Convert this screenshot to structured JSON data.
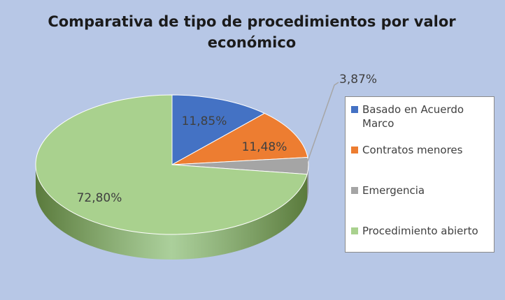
{
  "chart_data": {
    "type": "pie",
    "title": "Comparativa de tipo de procedimientos por valor económico",
    "title_lines": [
      "Comparativa de tipo de procedimientos por valor",
      "económico"
    ],
    "legend_position": "right",
    "slices": [
      {
        "name": "Basado en Acuerdo Marco",
        "value": 11.85,
        "label": "11,85%",
        "color": "#4472c4",
        "side": "#2f5597"
      },
      {
        "name": "Contratos menores",
        "value": 11.48,
        "label": "11,48%",
        "color": "#ed7d31",
        "side": "#b85a1c"
      },
      {
        "name": "Emergencia",
        "value": 3.87,
        "label": "3,87%",
        "color": "#a5a5a5",
        "side": "#6e6e6e"
      },
      {
        "name": "Procedimiento abierto",
        "value": 72.8,
        "label": "72,80%",
        "color": "#a9d18e",
        "side": "#5a7a3c"
      }
    ]
  }
}
